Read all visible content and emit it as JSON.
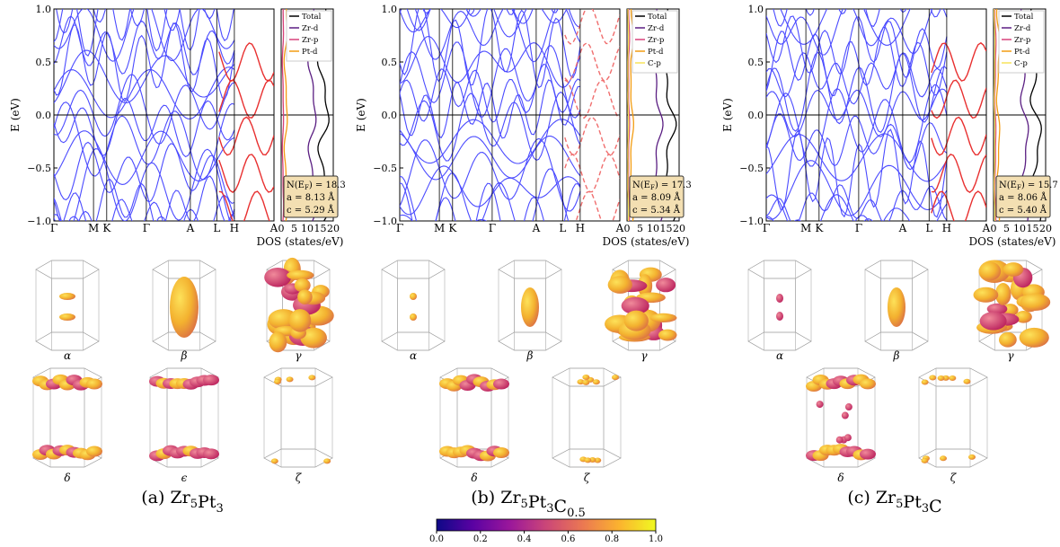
{
  "colors": {
    "band_blue": "#4b4bff",
    "band_red": "#e83030",
    "band_red_dashed": "#f06e6e",
    "total": "#000000",
    "zr_d": "#5a1e82",
    "zr_p": "#d8427a",
    "pt_d": "#f39c12",
    "c_p": "#f7e35a",
    "info_box": "#f3dfb2",
    "fs_mid": "#e58a4a",
    "fs_light": "#f7cf3a"
  },
  "axis": {
    "ylabel": "E (eV)",
    "yticks": [
      "1.0",
      "0.5",
      "0.0",
      "−0.5",
      "−1.0"
    ],
    "kpath": [
      "Γ",
      "M",
      "K",
      "Γ",
      "A",
      "L",
      "H",
      "A"
    ],
    "dos_xlabel": "DOS (states/eV)",
    "dos_xticks": [
      "0",
      "5",
      "10",
      "15",
      "20"
    ]
  },
  "colorbar": {
    "ticks": [
      "0.0",
      "0.2",
      "0.4",
      "0.6",
      "0.8",
      "1.0"
    ],
    "stops": [
      "#0d0887",
      "#5b02a3",
      "#9a179b",
      "#cb4678",
      "#eb7852",
      "#fbb32f",
      "#f0f921"
    ]
  },
  "panels": [
    {
      "id": "a",
      "caption_prefix": "(a) ",
      "formula": [
        {
          "el": "Zr",
          "sub": "5"
        },
        {
          "el": "Pt",
          "sub": "3"
        }
      ],
      "legend": [
        "Total",
        "Zr-d",
        "Zr-p",
        "Pt-d"
      ],
      "info": [
        "N(E_F) = 18.3",
        "a = 8.13 Å",
        "c = 5.29 Å"
      ],
      "fs_row1": [
        "α",
        "β",
        "γ"
      ],
      "fs_row2": [
        "δ",
        "ϵ",
        "ζ"
      ]
    },
    {
      "id": "b",
      "caption_prefix": "(b) ",
      "formula": [
        {
          "el": "Zr",
          "sub": "5"
        },
        {
          "el": "Pt",
          "sub": "3"
        },
        {
          "el": "C",
          "sub": "0.5"
        }
      ],
      "legend": [
        "Total",
        "Zr-d",
        "Zr-p",
        "Pt-d",
        "C-p"
      ],
      "info": [
        "N(E_F) = 17.3",
        "a = 8.09 Å",
        "c = 5.34 Å"
      ],
      "fs_row1": [
        "α",
        "β",
        "γ"
      ],
      "fs_row2": [
        "δ",
        "ζ"
      ]
    },
    {
      "id": "c",
      "caption_prefix": "(c) ",
      "formula": [
        {
          "el": "Zr",
          "sub": "5"
        },
        {
          "el": "Pt",
          "sub": "3"
        },
        {
          "el": "C",
          "sub": ""
        }
      ],
      "legend": [
        "Total",
        "Zr-d",
        "Zr-p",
        "Pt-d",
        "C-p"
      ],
      "info": [
        "N(E_F) = 15.7",
        "a = 8.06 Å",
        "c = 5.40 Å"
      ],
      "fs_row1": [
        "α",
        "β",
        "γ"
      ],
      "fs_row2": [
        "δ",
        "ζ"
      ]
    }
  ]
}
